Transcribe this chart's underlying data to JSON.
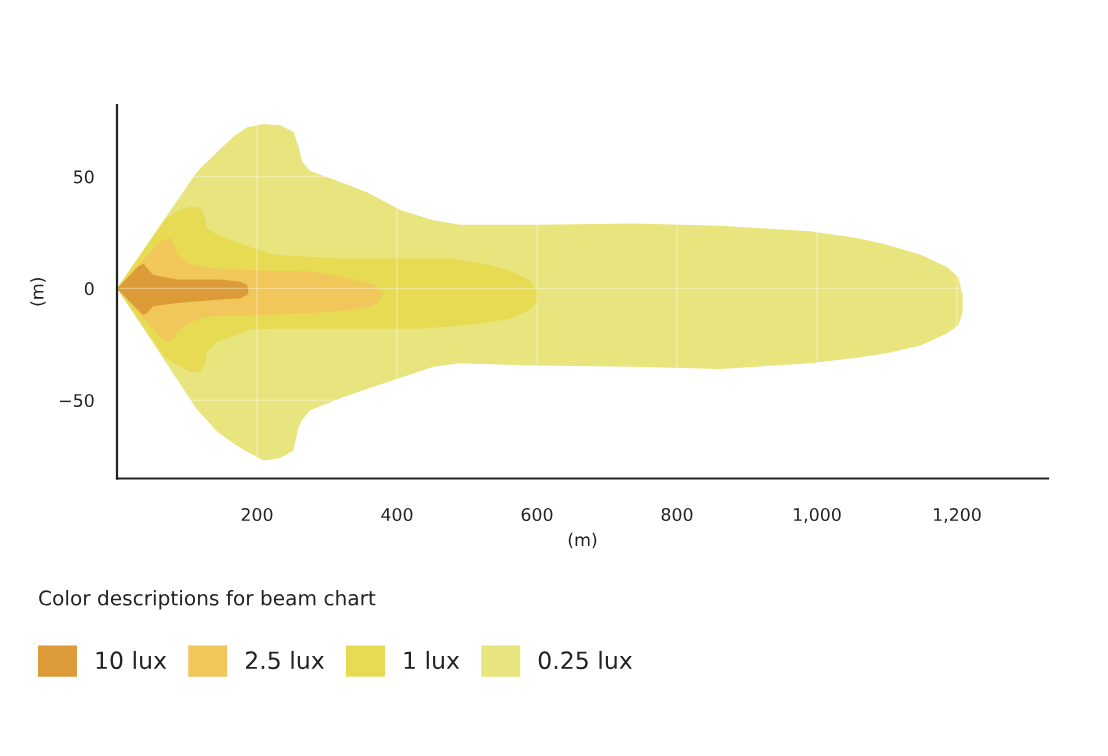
{
  "chart_data": {
    "type": "area",
    "xlabel": "(m)",
    "ylabel": "(m)",
    "legend_title": "Color descriptions for beam chart",
    "series": [
      {
        "name": "10 lux",
        "color": "#dc9b38",
        "x": [
          0,
          31,
          38,
          43,
          52,
          86,
          148,
          176,
          186,
          188,
          186,
          176,
          148,
          86,
          52,
          43,
          38,
          31
        ],
        "values": [
          0,
          10,
          11,
          9,
          6,
          4,
          4,
          3,
          1.5,
          -1,
          -3,
          -4.5,
          -5,
          -6.5,
          -8,
          -11,
          -12,
          -10
        ]
      },
      {
        "name": "2.5 lux",
        "color": "#f1c65a",
        "x": [
          0,
          62,
          76,
          83,
          86,
          105,
          133,
          200,
          276,
          324,
          362,
          372,
          381,
          372,
          362,
          324,
          276,
          200,
          133,
          105,
          86,
          83,
          76,
          62
        ],
        "values": [
          0,
          21,
          22.5,
          18.5,
          15,
          11,
          9,
          8,
          7.5,
          5,
          2,
          0.5,
          -2.5,
          -6.5,
          -8,
          -10,
          -11,
          -12,
          -12.5,
          -15,
          -19.5,
          -21.5,
          -24,
          -22
        ]
      },
      {
        "name": "1 lux",
        "color": "#e6db53",
        "x": [
          0,
          69,
          90,
          105,
          119,
          126,
          128,
          143,
          190,
          224,
          310,
          433,
          476,
          524,
          562,
          590,
          602,
          600,
          590,
          562,
          524,
          476,
          433,
          310,
          224,
          190,
          143,
          128,
          126,
          119,
          105,
          90,
          69
        ],
        "values": [
          0,
          31,
          35,
          36.5,
          36,
          31,
          27,
          24,
          18.5,
          15,
          13.5,
          13.5,
          13.5,
          11,
          8,
          3.5,
          -1.5,
          -6,
          -9.5,
          -13.5,
          -15.5,
          -17,
          -18,
          -18,
          -18,
          -18.5,
          -24,
          -28.5,
          -34,
          -37,
          -37.5,
          -35,
          -31
        ]
      },
      {
        "name": "0.25 lux",
        "color": "#e8e47e",
        "x": [
          0,
          114,
          143,
          167,
          186,
          209,
          233,
          252,
          259,
          264,
          276,
          320,
          357,
          405,
          452,
          490,
          600,
          738,
          862,
          990,
          1057,
          1100,
          1148,
          1186,
          1202,
          1208,
          1208,
          1202,
          1186,
          1148,
          1100,
          1057,
          990,
          862,
          738,
          600,
          490,
          452,
          405,
          357,
          320,
          276,
          264,
          259,
          252,
          233,
          209,
          186,
          167,
          143,
          114
        ],
        "values": [
          0,
          52,
          61,
          68,
          72,
          73.5,
          73,
          70,
          64,
          57,
          52.5,
          47.5,
          43,
          35,
          30.5,
          28.5,
          28.5,
          29,
          28,
          25.5,
          22.5,
          19.5,
          15,
          9.5,
          5,
          -3,
          -10.5,
          -16.5,
          -20,
          -25.5,
          -29,
          -31,
          -33.5,
          -36,
          -35,
          -34.5,
          -33.5,
          -35,
          -40,
          -45,
          -49,
          -54.5,
          -59,
          -62.5,
          -72.5,
          -76,
          -77,
          -73,
          -69.5,
          -64,
          -54
        ]
      }
    ],
    "xlim": [
      0,
      1330
    ],
    "ylim": [
      -85,
      82
    ],
    "xticks": [
      200,
      400,
      600,
      800,
      {
        "value": 1000,
        "label": "1,000"
      },
      {
        "value": 1200,
        "label": "1,200"
      }
    ],
    "yticks": [
      {
        "value": -50,
        "label": "−50"
      },
      0,
      50
    ],
    "grid": true,
    "legend": "bottom"
  }
}
